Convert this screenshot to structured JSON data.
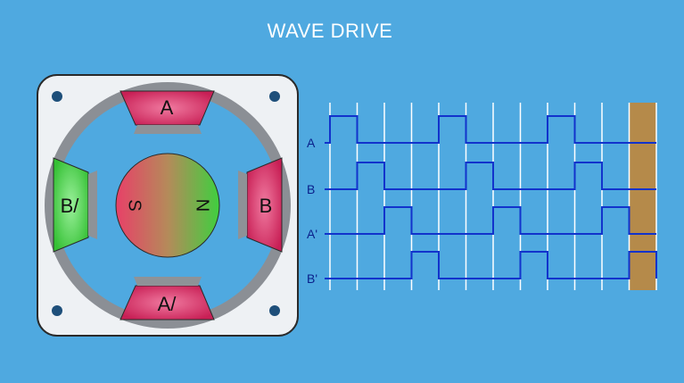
{
  "title": "WAVE DRIVE",
  "motor": {
    "poles": {
      "top": "A",
      "right": "B",
      "bottom": "A/",
      "left": "B/"
    },
    "rotor": {
      "south": "S",
      "north": "N"
    },
    "colors": {
      "frame": "#e9edf1",
      "pole_magenta": "#e23a6e",
      "pole_green": "#4fd04f",
      "ring": "#8b8f95"
    }
  },
  "timing": {
    "signals": [
      {
        "label": "A",
        "pulses": [
          0,
          4,
          8
        ]
      },
      {
        "label": "B",
        "pulses": [
          1,
          5,
          9
        ]
      },
      {
        "label": "A'",
        "pulses": [
          2,
          6,
          10
        ]
      },
      {
        "label": "B'",
        "pulses": [
          3,
          7,
          11
        ]
      }
    ],
    "steps": 12,
    "highlight_step": 11,
    "colors": {
      "wave": "#1233cc",
      "grid": "#ffffff",
      "highlight": "#b58a4a"
    }
  }
}
